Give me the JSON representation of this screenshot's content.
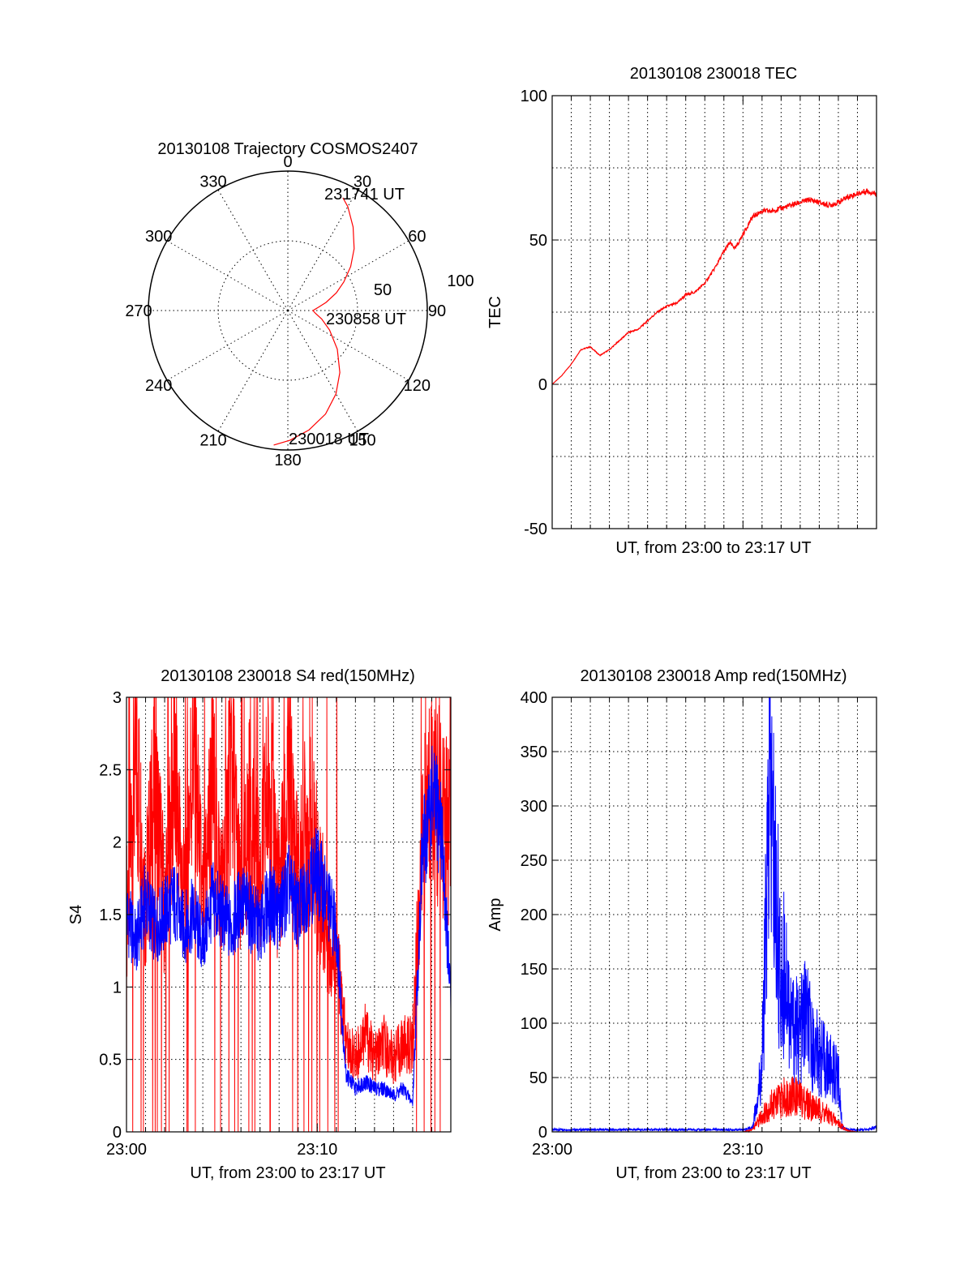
{
  "chart_data": [
    {
      "type": "polar",
      "title": "20130108 Trajectory COSMOS2407",
      "azimuth_labels": [
        "0",
        "30",
        "60",
        "90",
        "120",
        "150",
        "180",
        "210",
        "240",
        "270",
        "300",
        "330"
      ],
      "radial_labels": [
        "50",
        "100"
      ],
      "radial_range": [
        0,
        100
      ],
      "trajectory": {
        "color": "#ff0000",
        "points": [
          [
            186,
            97
          ],
          [
            179,
            93
          ],
          [
            170,
            87
          ],
          [
            160,
            79
          ],
          [
            150,
            69
          ],
          [
            140,
            58
          ],
          [
            128,
            45
          ],
          [
            115,
            33
          ],
          [
            104,
            25
          ],
          [
            96,
            20
          ],
          [
            90,
            18
          ],
          [
            84,
            22
          ],
          [
            78,
            28
          ],
          [
            70,
            37
          ],
          [
            63,
            45
          ],
          [
            55,
            55
          ],
          [
            47,
            65
          ],
          [
            38,
            76
          ],
          [
            30,
            86
          ],
          [
            26,
            90
          ]
        ]
      },
      "annotations": [
        "231741 UT",
        "230858 UT",
        "230018 UT"
      ],
      "grid": true
    },
    {
      "type": "line",
      "title": "20130108 230018 TEC",
      "xlabel": "UT, from 23:00 to 23:17 UT",
      "ylabel": "TEC",
      "xlim": [
        0,
        17
      ],
      "ylim": [
        -50,
        100
      ],
      "yticks": [
        "-50",
        "0",
        "50",
        "100"
      ],
      "grid": true,
      "series": [
        {
          "color": "#ff0000",
          "x": [
            0,
            0.5,
            1,
            1.5,
            2,
            2.5,
            3,
            3.5,
            4,
            4.5,
            5,
            5.5,
            6,
            6.5,
            7,
            7.5,
            8,
            8.5,
            9,
            9.3,
            9.6,
            10,
            10.5,
            11,
            11.5,
            12,
            12.5,
            13,
            13.5,
            14,
            14.5,
            15,
            15.5,
            16,
            16.5,
            17
          ],
          "y": [
            0,
            3,
            7,
            12,
            13,
            10,
            12,
            15,
            18,
            19,
            22,
            25,
            27,
            28,
            31,
            32,
            35,
            40,
            46,
            49,
            47,
            52,
            58,
            60,
            60,
            61,
            62,
            63,
            64,
            63,
            62,
            63,
            65,
            66,
            67,
            66
          ]
        }
      ]
    },
    {
      "type": "line",
      "title": "20130108 230018 S4 red(150MHz)",
      "xlabel": "UT, from 23:00 to 23:17 UT",
      "ylabel": "S4",
      "xlim": [
        0,
        17
      ],
      "ylim": [
        0,
        3
      ],
      "yticks": [
        "0",
        "0.5",
        "1",
        "1.5",
        "2",
        "2.5",
        "3"
      ],
      "xticks": [
        "23:00",
        "23:10"
      ],
      "grid": true,
      "series": [
        {
          "color": "#ff0000",
          "x": [
            0,
            0.5,
            1,
            1.5,
            2,
            2.5,
            3,
            3.5,
            4,
            4.5,
            5,
            5.5,
            6,
            6.5,
            7,
            7.5,
            8,
            8.5,
            9,
            9.5,
            10,
            10.5,
            11,
            11.5,
            12,
            12.5,
            13,
            13.5,
            14,
            14.5,
            15,
            15.5,
            16,
            16.5,
            17
          ],
          "y": [
            1.5,
            2.6,
            1.6,
            2.4,
            1.5,
            2.5,
            1.6,
            2.7,
            1.5,
            2.4,
            1.6,
            2.6,
            1.5,
            2.3,
            1.7,
            2.5,
            1.6,
            2.4,
            1.7,
            2.2,
            1.8,
            1.4,
            1.2,
            0.6,
            0.5,
            0.7,
            0.5,
            0.6,
            0.5,
            0.6,
            0.6,
            2.0,
            2.4,
            2.2,
            2.0
          ]
        },
        {
          "color": "#0000ff",
          "x": [
            0,
            0.5,
            1,
            1.5,
            2,
            2.5,
            3,
            3.5,
            4,
            4.5,
            5,
            5.5,
            6,
            6.5,
            7,
            7.5,
            8,
            8.5,
            9,
            9.5,
            10,
            10.5,
            11,
            11.5,
            12,
            12.5,
            13,
            13.5,
            14,
            14.5,
            15,
            15.5,
            16,
            16.5,
            17
          ],
          "y": [
            1.5,
            1.3,
            1.6,
            1.4,
            1.5,
            1.6,
            1.4,
            1.5,
            1.3,
            1.6,
            1.5,
            1.4,
            1.6,
            1.5,
            1.4,
            1.6,
            1.5,
            1.7,
            1.5,
            1.7,
            1.8,
            1.6,
            1.4,
            0.4,
            0.3,
            0.35,
            0.3,
            0.3,
            0.25,
            0.3,
            0.2,
            1.9,
            2.3,
            2.1,
            0.9
          ]
        }
      ]
    },
    {
      "type": "line",
      "title": "20130108 230018 Amp red(150MHz)",
      "xlabel": "UT, from 23:00 to 23:17 UT",
      "ylabel": "Amp",
      "xlim": [
        0,
        17
      ],
      "ylim": [
        0,
        400
      ],
      "yticks": [
        "0",
        "50",
        "100",
        "150",
        "200",
        "250",
        "300",
        "350",
        "400"
      ],
      "xticks": [
        "23:00",
        "23:10"
      ],
      "grid": true,
      "series": [
        {
          "color": "#0000ff",
          "x": [
            0,
            1,
            2,
            3,
            4,
            5,
            6,
            7,
            8,
            9,
            10,
            10.5,
            11,
            11.2,
            11.4,
            11.6,
            11.8,
            12,
            12.2,
            12.5,
            13,
            13.3,
            13.6,
            14,
            14.5,
            15,
            15.2,
            15.5,
            16,
            16.5,
            17
          ],
          "y": [
            2,
            2,
            2,
            2,
            2,
            2,
            2,
            2,
            2,
            2,
            2,
            4,
            60,
            180,
            320,
            250,
            200,
            120,
            160,
            100,
            90,
            110,
            80,
            70,
            60,
            50,
            5,
            2,
            2,
            2,
            4
          ]
        },
        {
          "color": "#ff0000",
          "x": [
            0,
            1,
            2,
            3,
            4,
            5,
            6,
            7,
            8,
            9,
            10,
            10.5,
            11,
            11.5,
            12,
            12.5,
            13,
            13.5,
            14,
            14.5,
            15,
            15.5,
            16,
            17
          ],
          "y": [
            0,
            0,
            0,
            0,
            0,
            0,
            0,
            0,
            0,
            0,
            0,
            2,
            15,
            25,
            30,
            35,
            30,
            25,
            20,
            15,
            8,
            1,
            0,
            0
          ]
        }
      ]
    }
  ]
}
